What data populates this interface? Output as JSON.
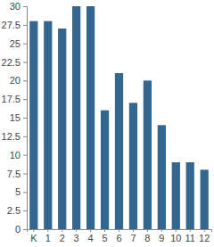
{
  "chart_data": {
    "type": "bar",
    "categories": [
      "K",
      "1",
      "2",
      "3",
      "4",
      "5",
      "6",
      "7",
      "8",
      "9",
      "10",
      "11",
      "12"
    ],
    "values": [
      28,
      28,
      27,
      30,
      30,
      16,
      21,
      17,
      20,
      14,
      9,
      9,
      8
    ],
    "color": "#34678f",
    "ylim": [
      0,
      30
    ],
    "yticks": [
      0,
      2.5,
      5,
      7.5,
      10,
      12.5,
      15,
      17.5,
      20,
      22.5,
      25,
      27.5,
      30
    ],
    "grid": false
  }
}
